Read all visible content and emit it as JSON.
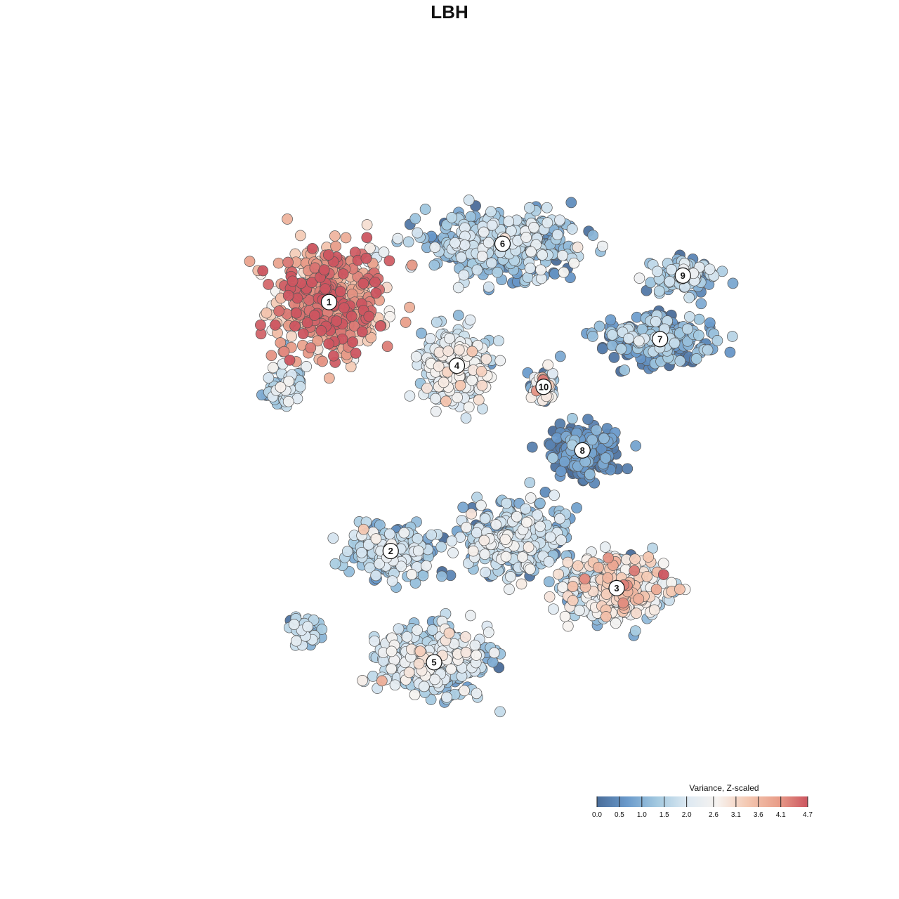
{
  "title": "LBH",
  "chart_data": {
    "type": "scatter",
    "title": "LBH",
    "xlabel": "",
    "ylabel": "",
    "grid": false,
    "legend_position": "bottom-right",
    "color_scale": {
      "title": "Variance, Z-scaled",
      "min": 0.0,
      "max": 4.7,
      "ticks": [
        "0.0",
        "0.5",
        "1.0",
        "1.5",
        "2.0",
        "2.6",
        "3.1",
        "3.6",
        "4.1",
        "4.7"
      ],
      "tick_values": [
        0.0,
        0.5,
        1.0,
        1.5,
        2.0,
        2.6,
        3.1,
        3.6,
        4.1,
        4.7
      ],
      "colors": [
        "#4a6d9a",
        "#6a9acb",
        "#a3c9e0",
        "#dde9f2",
        "#f7f3f0",
        "#f4c8b2",
        "#e99f8a",
        "#cc5560"
      ]
    },
    "clusters": [
      {
        "label": "1",
        "x": -6.2,
        "y": 5.5,
        "spread_x": 2.2,
        "spread_y": 1.9,
        "n": 520,
        "mean_value": 3.8,
        "sd_value": 0.7
      },
      {
        "label": "2",
        "x": -3.5,
        "y": -3.9,
        "spread_x": 1.8,
        "spread_y": 0.9,
        "n": 230,
        "mean_value": 1.3,
        "sd_value": 0.6
      },
      {
        "label": "3",
        "x": 6.4,
        "y": -5.3,
        "spread_x": 1.9,
        "spread_y": 1.1,
        "n": 380,
        "mean_value": 2.3,
        "sd_value": 0.8
      },
      {
        "label": "4",
        "x": -0.6,
        "y": 3.1,
        "spread_x": 1.4,
        "spread_y": 1.2,
        "n": 300,
        "mean_value": 2.0,
        "sd_value": 0.5
      },
      {
        "label": "5",
        "x": -1.6,
        "y": -8.1,
        "spread_x": 2.2,
        "spread_y": 1.1,
        "n": 420,
        "mean_value": 1.6,
        "sd_value": 0.6
      },
      {
        "label": "6",
        "x": 1.4,
        "y": 7.7,
        "spread_x": 3.0,
        "spread_y": 1.0,
        "n": 420,
        "mean_value": 1.2,
        "sd_value": 0.6
      },
      {
        "label": "7",
        "x": 8.3,
        "y": 4.1,
        "spread_x": 2.2,
        "spread_y": 0.8,
        "n": 260,
        "mean_value": 0.7,
        "sd_value": 0.6
      },
      {
        "label": "8",
        "x": 4.9,
        "y": -0.1,
        "spread_x": 1.3,
        "spread_y": 0.9,
        "n": 200,
        "mean_value": 0.3,
        "sd_value": 0.4
      },
      {
        "label": "9",
        "x": 9.3,
        "y": 6.5,
        "spread_x": 1.3,
        "spread_y": 0.6,
        "n": 110,
        "mean_value": 1.3,
        "sd_value": 0.6
      },
      {
        "label": "10",
        "x": 3.2,
        "y": 2.3,
        "spread_x": 0.5,
        "spread_y": 0.6,
        "n": 60,
        "mean_value": 1.8,
        "sd_value": 1.0
      },
      {
        "label": "",
        "x": 1.8,
        "y": -3.5,
        "spread_x": 2.0,
        "spread_y": 1.2,
        "n": 380,
        "mean_value": 1.4,
        "sd_value": 0.7
      },
      {
        "label": "",
        "x": -7.3,
        "y": -6.8,
        "spread_x": 1.0,
        "spread_y": 0.5,
        "n": 40,
        "mean_value": 1.3,
        "sd_value": 0.6
      },
      {
        "label": "",
        "x": -8.2,
        "y": 2.3,
        "spread_x": 0.9,
        "spread_y": 0.7,
        "n": 60,
        "mean_value": 1.6,
        "sd_value": 0.5
      }
    ],
    "xlim": [
      -14,
      14
    ],
    "ylim": [
      -12,
      12
    ]
  }
}
